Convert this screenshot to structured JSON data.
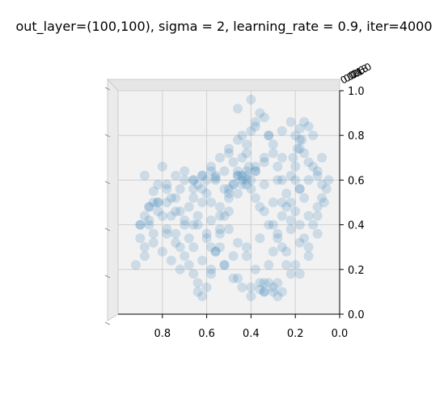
{
  "chart_data": {
    "type": "scatter",
    "title": "out_layer=(100,100), sigma = 2, learning_rate = 0.9, iter=4000",
    "xlabel": "",
    "ylabel": "",
    "zlabel": "",
    "view": "3d-top-down",
    "xlim": [
      1.0,
      0.0
    ],
    "ylim": [
      0.0,
      1.0
    ],
    "x_ticks": [
      "0.8",
      "0.6",
      "0.4",
      "0.2",
      "0.0"
    ],
    "y_ticks": [
      "0.0",
      "0.2",
      "0.4",
      "0.6",
      "0.8",
      "1.0"
    ],
    "z_ticks": [
      "0.0",
      "0.2",
      "0.4",
      "0.6",
      "0.8",
      "1.0"
    ],
    "grid": true,
    "point_color": "#1f77b4",
    "point_alpha": 0.05,
    "series": [
      {
        "points_x": [
          0.92,
          0.88,
          0.9,
          0.86,
          0.84,
          0.88,
          0.8,
          0.82,
          0.78,
          0.76,
          0.74,
          0.72,
          0.7,
          0.68,
          0.66,
          0.64,
          0.62,
          0.6,
          0.58,
          0.56,
          0.54,
          0.52,
          0.5,
          0.48,
          0.46,
          0.44,
          0.42,
          0.4,
          0.38,
          0.36,
          0.34,
          0.32,
          0.3,
          0.28,
          0.26,
          0.24,
          0.22,
          0.2,
          0.18,
          0.16,
          0.14,
          0.12,
          0.1,
          0.08,
          0.06,
          0.05,
          0.9,
          0.86,
          0.82,
          0.78,
          0.74,
          0.7,
          0.66,
          0.62,
          0.58,
          0.54,
          0.5,
          0.46,
          0.42,
          0.38,
          0.34,
          0.3,
          0.26,
          0.22,
          0.18,
          0.14,
          0.1,
          0.07,
          0.88,
          0.84,
          0.8,
          0.76,
          0.72,
          0.68,
          0.64,
          0.6,
          0.56,
          0.52,
          0.48,
          0.44,
          0.4,
          0.36,
          0.32,
          0.28,
          0.24,
          0.2,
          0.16,
          0.12,
          0.08,
          0.86,
          0.82,
          0.78,
          0.74,
          0.7,
          0.66,
          0.62,
          0.58,
          0.54,
          0.5,
          0.46,
          0.42,
          0.38,
          0.34,
          0.3,
          0.26,
          0.22,
          0.18,
          0.14,
          0.1,
          0.84,
          0.8,
          0.76,
          0.72,
          0.68,
          0.64,
          0.6,
          0.56,
          0.52,
          0.48,
          0.44,
          0.4,
          0.36,
          0.32,
          0.28,
          0.24,
          0.2,
          0.16,
          0.12,
          0.08,
          0.82,
          0.78,
          0.74,
          0.7,
          0.66,
          0.62,
          0.58,
          0.54,
          0.5,
          0.46,
          0.42,
          0.38,
          0.34,
          0.3,
          0.26,
          0.22,
          0.18,
          0.14,
          0.1,
          0.78,
          0.74,
          0.7,
          0.66,
          0.62,
          0.58,
          0.54,
          0.5,
          0.46,
          0.42,
          0.38,
          0.34,
          0.3,
          0.26,
          0.22,
          0.18,
          0.14,
          0.1,
          0.72,
          0.66,
          0.6,
          0.54,
          0.48,
          0.42,
          0.36,
          0.3,
          0.24,
          0.18,
          0.14,
          0.64,
          0.58,
          0.52,
          0.46,
          0.4,
          0.34,
          0.28,
          0.22,
          0.18,
          0.56,
          0.5,
          0.44,
          0.38,
          0.32,
          0.26,
          0.2,
          0.46,
          0.4,
          0.34,
          0.28,
          0.2,
          0.18,
          0.17,
          0.16,
          0.19,
          0.21,
          0.42,
          0.4,
          0.38,
          0.44,
          0.41,
          0.62,
          0.6,
          0.58,
          0.64,
          0.56,
          0.66,
          0.34,
          0.3,
          0.28,
          0.26,
          0.32,
          0.36,
          0.88,
          0.86,
          0.9,
          0.84,
          0.48,
          0.44,
          0.52,
          0.46,
          0.5,
          0.42
        ],
        "points_y": [
          0.22,
          0.3,
          0.4,
          0.48,
          0.55,
          0.62,
          0.66,
          0.58,
          0.5,
          0.44,
          0.36,
          0.3,
          0.26,
          0.22,
          0.18,
          0.1,
          0.08,
          0.12,
          0.2,
          0.28,
          0.36,
          0.44,
          0.52,
          0.58,
          0.64,
          0.7,
          0.76,
          0.82,
          0.86,
          0.9,
          0.88,
          0.8,
          0.72,
          0.66,
          0.6,
          0.54,
          0.5,
          0.46,
          0.4,
          0.34,
          0.3,
          0.4,
          0.48,
          0.52,
          0.56,
          0.6,
          0.34,
          0.42,
          0.5,
          0.56,
          0.62,
          0.64,
          0.6,
          0.56,
          0.5,
          0.44,
          0.38,
          0.32,
          0.26,
          0.2,
          0.14,
          0.1,
          0.3,
          0.42,
          0.56,
          0.68,
          0.64,
          0.5,
          0.26,
          0.36,
          0.44,
          0.52,
          0.56,
          0.48,
          0.4,
          0.34,
          0.28,
          0.22,
          0.16,
          0.12,
          0.08,
          0.14,
          0.22,
          0.36,
          0.48,
          0.6,
          0.72,
          0.8,
          0.58,
          0.4,
          0.46,
          0.38,
          0.32,
          0.42,
          0.52,
          0.62,
          0.66,
          0.7,
          0.74,
          0.78,
          0.72,
          0.66,
          0.58,
          0.5,
          0.44,
          0.38,
          0.32,
          0.44,
          0.62,
          0.32,
          0.28,
          0.24,
          0.2,
          0.34,
          0.44,
          0.54,
          0.6,
          0.64,
          0.68,
          0.62,
          0.56,
          0.48,
          0.4,
          0.34,
          0.28,
          0.22,
          0.52,
          0.66,
          0.7,
          0.5,
          0.58,
          0.46,
          0.4,
          0.3,
          0.24,
          0.3,
          0.38,
          0.46,
          0.54,
          0.6,
          0.64,
          0.7,
          0.76,
          0.82,
          0.86,
          0.78,
          0.6,
          0.36,
          0.36,
          0.52,
          0.6,
          0.56,
          0.5,
          0.42,
          0.48,
          0.56,
          0.62,
          0.58,
          0.52,
          0.46,
          0.4,
          0.5,
          0.62,
          0.74,
          0.84,
          0.44,
          0.46,
          0.4,
          0.36,
          0.3,
          0.26,
          0.3,
          0.34,
          0.28,
          0.22,
          0.18,
          0.26,
          0.14,
          0.18,
          0.22,
          0.16,
          0.12,
          0.1,
          0.14,
          0.18,
          0.56,
          0.62,
          0.72,
          0.8,
          0.84,
          0.8,
          0.7,
          0.66,
          0.92,
          0.96,
          0.68,
          0.6,
          0.8,
          0.83,
          0.78,
          0.86,
          0.74,
          0.7,
          0.62,
          0.6,
          0.64,
          0.58,
          0.66,
          0.62,
          0.6,
          0.64,
          0.58,
          0.61,
          0.6,
          0.1,
          0.12,
          0.08,
          0.1,
          0.14,
          0.11,
          0.44,
          0.48,
          0.4,
          0.5,
          0.58,
          0.6,
          0.56,
          0.62,
          0.54,
          0.64
        ]
      }
    ]
  }
}
